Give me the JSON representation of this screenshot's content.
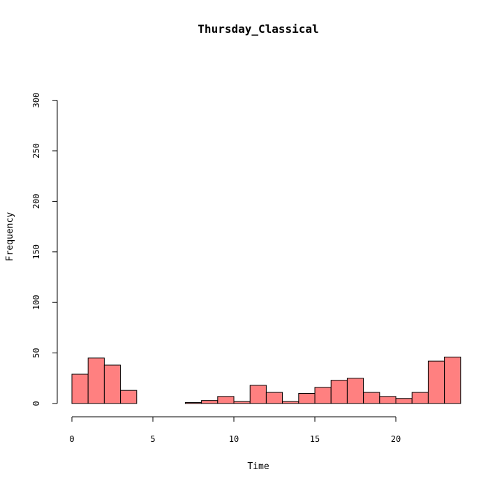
{
  "chart_data": {
    "type": "bar",
    "title": "Thursday_Classical",
    "xlabel": "Time",
    "ylabel": "Frequency",
    "xlim": [
      0,
      24
    ],
    "ylim": [
      0,
      300
    ],
    "x_ticks": [
      "0",
      "5",
      "10",
      "15",
      "20"
    ],
    "y_ticks": [
      "0",
      "50",
      "100",
      "150",
      "200",
      "250",
      "300"
    ],
    "bin_width": 1,
    "bin_starts": [
      0,
      1,
      2,
      3,
      4,
      5,
      6,
      7,
      8,
      9,
      10,
      11,
      12,
      13,
      14,
      15,
      16,
      17,
      18,
      19,
      20,
      21,
      22,
      23
    ],
    "values": [
      29,
      45,
      38,
      13,
      0,
      0,
      0,
      1,
      3,
      7,
      2,
      18,
      11,
      2,
      10,
      16,
      23,
      25,
      11,
      7,
      5,
      11,
      42,
      46
    ],
    "bar_color": "#FF8080",
    "grid": false
  }
}
